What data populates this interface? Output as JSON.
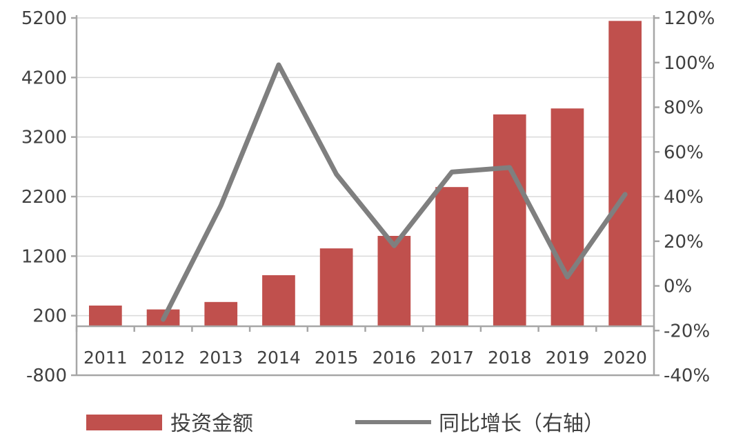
{
  "chart_data": {
    "type": "bar",
    "categories": [
      "2011",
      "2012",
      "2013",
      "2014",
      "2015",
      "2016",
      "2017",
      "2018",
      "2019",
      "2020"
    ],
    "series": [
      {
        "name": "投资金额",
        "type": "bar",
        "axis": "left",
        "color": "#c0504d",
        "values": [
          370,
          305,
          430,
          880,
          1330,
          1540,
          2360,
          3580,
          3680,
          5150
        ]
      },
      {
        "name": "同比增长（右轴）",
        "type": "line",
        "axis": "right",
        "color": "#7f7f7f",
        "values": [
          null,
          -15,
          36,
          99,
          50,
          18,
          51,
          53,
          4,
          41
        ]
      }
    ],
    "y_left": {
      "ylim": [
        -800,
        5200
      ],
      "ticks": [
        -800,
        200,
        1200,
        2200,
        3200,
        4200,
        5200
      ],
      "tick_labels": [
        "-800",
        "200",
        "1200",
        "2200",
        "3200",
        "4200",
        "5200"
      ]
    },
    "y_right": {
      "ylim": [
        -40,
        120
      ],
      "unit": "%",
      "ticks": [
        -40,
        -20,
        0,
        20,
        40,
        60,
        80,
        100,
        120
      ],
      "tick_labels": [
        "-40%",
        "-20%",
        "0%",
        "20%",
        "40%",
        "60%",
        "80%",
        "100%",
        "120%"
      ]
    },
    "grid": true,
    "legend": "bottom",
    "title": "",
    "xlabel": "",
    "ylabel": ""
  }
}
